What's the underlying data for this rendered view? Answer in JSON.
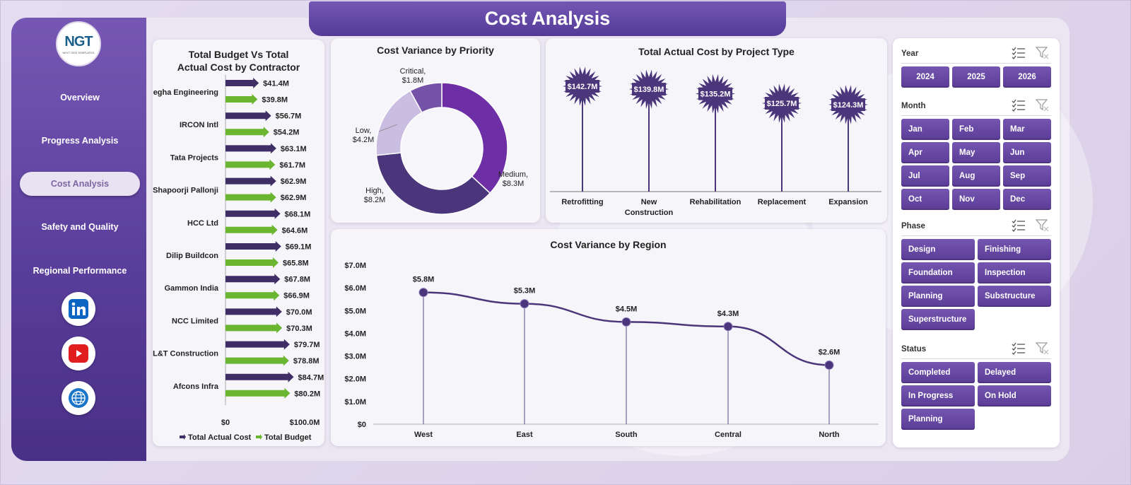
{
  "header": {
    "title": "Cost Analysis"
  },
  "sidebar": {
    "logo_text": "NGT",
    "logo_subtext": "NEXT GEN TEMPLATES",
    "items": [
      {
        "label": "Overview",
        "active": false
      },
      {
        "label": "Progress Analysis",
        "active": false
      },
      {
        "label": "Cost Analysis",
        "active": true
      },
      {
        "label": "Safety and Quality",
        "active": false
      },
      {
        "label": "Regional Performance",
        "active": false
      }
    ],
    "social": [
      {
        "icon": "linkedin-icon",
        "color": "#0a66c2"
      },
      {
        "icon": "youtube-icon",
        "color": "#e01e1e"
      },
      {
        "icon": "globe-icon",
        "color": "#1b75c9"
      }
    ]
  },
  "colors": {
    "actual": "#3f2d66",
    "budget": "#6bb630",
    "critical": "#7352a8",
    "low": "#c9bde2",
    "high": "#4b367b",
    "medium": "#6e2fa6",
    "accent": "#5b3d97"
  },
  "charts": {
    "contractor": {
      "title": "Total Budget Vs Total Actual Cost by Contractor",
      "legend": [
        "Total Actual Cost",
        "Total Budget"
      ]
    },
    "priority": {
      "title": "Cost Variance by Priority"
    },
    "project_type": {
      "title": "Total Actual Cost by Project Type"
    },
    "region": {
      "title": "Cost Variance by Region"
    }
  },
  "chart_data": [
    {
      "type": "bar",
      "orientation": "horizontal",
      "title": "Total Budget Vs Total Actual Cost by Contractor",
      "categories": [
        "Megha Engineering",
        "IRCON Intl",
        "Tata Projects",
        "Shapoorji Pallonji",
        "HCC Ltd",
        "Dilip Buildcon",
        "Gammon India",
        "NCC Limited",
        "L&T Construction",
        "Afcons Infra"
      ],
      "series": [
        {
          "name": "Total Actual Cost",
          "values": [
            41.4,
            56.7,
            63.1,
            62.9,
            68.1,
            69.1,
            67.8,
            70.0,
            79.7,
            84.7
          ],
          "labels": [
            "$41.4M",
            "$56.7M",
            "$63.1M",
            "$62.9M",
            "$68.1M",
            "$69.1M",
            "$67.8M",
            "$70.0M",
            "$79.7M",
            "$84.7M"
          ]
        },
        {
          "name": "Total Budget",
          "values": [
            39.8,
            54.2,
            61.7,
            62.9,
            64.6,
            65.8,
            66.9,
            70.3,
            78.8,
            80.2
          ],
          "labels": [
            "$39.8M",
            "$54.2M",
            "$61.7M",
            "$62.9M",
            "$64.6M",
            "$65.8M",
            "$66.9M",
            "$70.3M",
            "$78.8M",
            "$80.2M"
          ]
        }
      ],
      "xlim": [
        0,
        100
      ],
      "x_tick_labels": [
        "$0",
        "$100.0M"
      ],
      "legend_position": "bottom"
    },
    {
      "type": "pie",
      "title": "Cost Variance by Priority",
      "labels": [
        "Medium",
        "High",
        "Low",
        "Critical"
      ],
      "values": [
        8.3,
        8.2,
        4.2,
        1.8
      ],
      "value_labels": [
        "$8.3M",
        "$8.2M",
        "$4.2M",
        "$1.8M"
      ],
      "donut": true
    },
    {
      "type": "bar",
      "title": "Total Actual Cost by Project Type",
      "categories": [
        "Retrofitting",
        "New Construction",
        "Rehabilitation",
        "Replacement",
        "Expansion"
      ],
      "values": [
        142.7,
        139.8,
        135.2,
        125.7,
        124.3
      ],
      "labels": [
        "$142.7M",
        "$139.8M",
        "$135.2M",
        "$125.7M",
        "$124.3M"
      ]
    },
    {
      "type": "line",
      "title": "Cost Variance by Region",
      "categories": [
        "West",
        "East",
        "South",
        "Central",
        "North"
      ],
      "values": [
        5.8,
        5.3,
        4.5,
        4.3,
        2.6
      ],
      "labels": [
        "$5.8M",
        "$5.3M",
        "$4.5M",
        "$4.3M",
        "$2.6M"
      ],
      "ylim": [
        0,
        7
      ],
      "y_tick_labels": [
        "$0",
        "$1.0M",
        "$2.0M",
        "$3.0M",
        "$4.0M",
        "$5.0M",
        "$6.0M",
        "$7.0M"
      ],
      "grid": false
    }
  ],
  "slicers": {
    "year": {
      "label": "Year",
      "options": [
        "2024",
        "2025",
        "2026"
      ]
    },
    "month": {
      "label": "Month",
      "options": [
        "Jan",
        "Feb",
        "Mar",
        "Apr",
        "May",
        "Jun",
        "Jul",
        "Aug",
        "Sep",
        "Oct",
        "Nov",
        "Dec"
      ]
    },
    "phase": {
      "label": "Phase",
      "options": [
        "Design",
        "Finishing",
        "Foundation",
        "Inspection",
        "Planning",
        "Substructure",
        "Superstructure"
      ]
    },
    "status": {
      "label": "Status",
      "options": [
        "Completed",
        "Delayed",
        "In Progress",
        "On Hold",
        "Planning"
      ]
    }
  }
}
